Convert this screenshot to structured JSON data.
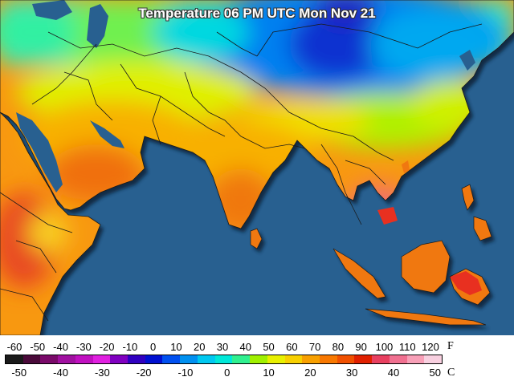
{
  "title": "Temperature 06 PM UTC Mon Nov 21",
  "legend": {
    "fahrenheit_unit": "F",
    "celsius_unit": "C",
    "fahrenheit_ticks": [
      "-60",
      "-50",
      "-40",
      "-30",
      "-20",
      "-10",
      "0",
      "10",
      "20",
      "30",
      "40",
      "50",
      "60",
      "70",
      "80",
      "90",
      "100",
      "110",
      "120"
    ],
    "celsius_ticks": [
      "-50",
      "-40",
      "-30",
      "-20",
      "-10",
      "0",
      "10",
      "20",
      "30",
      "40",
      "50"
    ],
    "colors": [
      "#1a1a1a",
      "#4a0a3a",
      "#7a0a6a",
      "#a010a0",
      "#c010c0",
      "#e020e0",
      "#8000c0",
      "#3000c0",
      "#0010d0",
      "#0050f0",
      "#0090f0",
      "#00c8f0",
      "#00e8d8",
      "#30f090",
      "#a0f000",
      "#e8f000",
      "#f8d000",
      "#f8a000",
      "#f87800",
      "#f05000",
      "#e02000",
      "#e84060",
      "#f07090",
      "#f8a0b8",
      "#f8d0e0"
    ]
  },
  "map_colors": {
    "ocean": "#286090",
    "border": "#1a1a1a"
  }
}
